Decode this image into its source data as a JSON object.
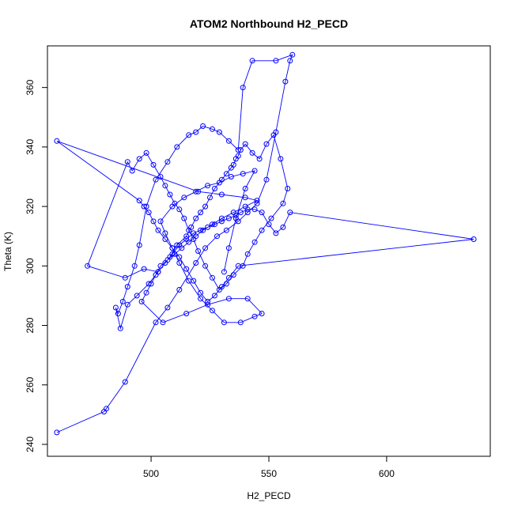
{
  "chart_data": {
    "type": "scatter",
    "mode": "lines+markers",
    "title": "ATOM2 Northbound H2_PECD",
    "xlabel": "H2_PECD",
    "ylabel": "Theta (K)",
    "xlim": [
      456,
      644
    ],
    "ylim": [
      236,
      374
    ],
    "x_ticks": [
      500,
      550,
      600
    ],
    "y_ticks": [
      240,
      260,
      280,
      300,
      320,
      340,
      360
    ],
    "grid": false,
    "legend": "none",
    "marker": "open-circle",
    "color": "#0000ff",
    "series": [
      {
        "x": [
          460,
          480,
          481,
          489,
          502,
          507,
          512,
          519,
          523,
          528,
          532,
          537,
          541,
          545,
          549,
          553,
          557,
          559,
          560,
          553,
          543,
          539,
          537,
          533,
          529,
          526,
          522,
          519,
          516,
          511,
          507,
          502,
          498,
          495,
          493,
          490,
          488,
          486,
          485,
          487,
          490,
          494,
          499,
          503,
          508,
          511,
          515,
          517,
          519,
          521,
          523,
          525,
          527,
          530,
          532,
          534,
          535,
          536,
          537,
          538,
          540,
          543,
          546,
          549,
          552,
          555,
          558,
          556,
          551,
          547,
          544,
          541,
          539,
          535,
          532,
          529,
          526,
          523,
          520,
          518,
          516,
          514,
          512,
          510,
          508,
          506,
          504,
          501,
          498,
          495,
          492,
          490,
          473,
          489,
          497,
          503,
          506,
          509,
          512,
          515,
          518,
          521,
          524,
          527,
          530,
          533,
          536,
          538,
          541,
          544,
          547,
          550,
          553,
          556,
          559,
          637,
          537,
          533,
          530,
          527,
          524,
          521,
          518,
          515,
          512,
          509,
          506,
          503,
          501,
          499,
          497,
          495,
          460,
          520,
          530,
          540,
          545,
          540,
          535,
          530,
          526,
          522,
          519,
          516,
          513,
          510,
          507,
          504,
          502,
          500,
          498,
          496,
          505,
          515,
          524,
          533,
          541,
          547,
          544,
          538,
          531,
          526,
          521,
          516,
          512,
          509,
          506,
          504,
          509,
          514,
          519,
          524,
          529,
          534,
          539,
          544,
          540,
          536,
          533,
          531
        ],
        "y": [
          244,
          251,
          252,
          261,
          281,
          286,
          292,
          301,
          306,
          310,
          312,
          315,
          318,
          321,
          329,
          345,
          362,
          369,
          371,
          369,
          369,
          360,
          339,
          342,
          345,
          346,
          347,
          345,
          344,
          340,
          335,
          329,
          320,
          307,
          300,
          293,
          288,
          284,
          286,
          279,
          287,
          290,
          294,
          298,
          303,
          307,
          310,
          313,
          316,
          318,
          320,
          323,
          326,
          329,
          331,
          333,
          334,
          336,
          337,
          339,
          341,
          338,
          336,
          341,
          344,
          336,
          326,
          321,
          316,
          312,
          308,
          304,
          300,
          297,
          294,
          292,
          296,
          300,
          305,
          309,
          312,
          316,
          319,
          321,
          324,
          327,
          330,
          334,
          338,
          336,
          332,
          335,
          300,
          296,
          299,
          298,
          301,
          304,
          307,
          309,
          311,
          312,
          313,
          314,
          315,
          316,
          317,
          318,
          319,
          319,
          318,
          314,
          311,
          313,
          318,
          309,
          300,
          296,
          293,
          290,
          288,
          291,
          295,
          299,
          303,
          306,
          309,
          312,
          315,
          318,
          320,
          322,
          342,
          325,
          324,
          323,
          322,
          320,
          318,
          316,
          314,
          312,
          310,
          308,
          306,
          304,
          302,
          300,
          297,
          294,
          291,
          288,
          281,
          284,
          287,
          289,
          289,
          284,
          283,
          281,
          281,
          285,
          289,
          295,
          301,
          306,
          311,
          315,
          320,
          323,
          325,
          327,
          328,
          330,
          331,
          332,
          326,
          316,
          306,
          298
        ]
      }
    ]
  }
}
